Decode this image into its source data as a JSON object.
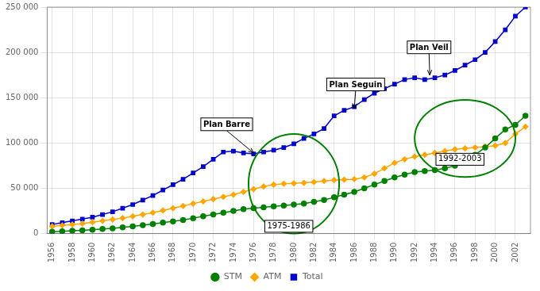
{
  "chart_data": {
    "type": "line",
    "x": [
      1956,
      1957,
      1958,
      1959,
      1960,
      1961,
      1962,
      1963,
      1964,
      1965,
      1966,
      1967,
      1968,
      1969,
      1970,
      1971,
      1972,
      1973,
      1974,
      1975,
      1976,
      1977,
      1978,
      1979,
      1980,
      1981,
      1982,
      1983,
      1984,
      1985,
      1986,
      1987,
      1988,
      1989,
      1990,
      1991,
      1992,
      1993,
      1994,
      1995,
      1996,
      1997,
      1998,
      1999,
      2000,
      2001,
      2002,
      2003
    ],
    "series": [
      {
        "name": "STM",
        "color": "#008000",
        "marker": "circle",
        "values": [
          2000,
          2500,
          3000,
          3500,
          4200,
          5000,
          5800,
          6800,
          7900,
          9200,
          10500,
          12000,
          13500,
          15000,
          17000,
          19000,
          21000,
          23000,
          25000,
          27000,
          28000,
          29000,
          30000,
          31000,
          32000,
          33000,
          35000,
          37000,
          40000,
          43000,
          46000,
          50000,
          54000,
          58000,
          62000,
          65000,
          68000,
          69000,
          70000,
          72000,
          75000,
          80000,
          87000,
          95000,
          105000,
          115000,
          120000,
          130000
        ]
      },
      {
        "name": "ATM",
        "color": "#FFA500",
        "marker": "diamond",
        "values": [
          8000,
          9000,
          10000,
          11000,
          12500,
          14000,
          15500,
          17000,
          19000,
          21000,
          23000,
          25500,
          28000,
          30500,
          33000,
          35500,
          38000,
          40500,
          43000,
          46000,
          49000,
          52000,
          54000,
          55000,
          55500,
          56000,
          57000,
          58000,
          59000,
          59500,
          60000,
          62000,
          66000,
          72000,
          78000,
          82000,
          85000,
          87000,
          89000,
          91000,
          93000,
          94000,
          95000,
          96000,
          97000,
          100000,
          110000,
          118000
        ]
      },
      {
        "name": "Total",
        "color": "#0000CD",
        "marker": "square",
        "values": [
          10000,
          12000,
          14000,
          16000,
          18000,
          21000,
          24000,
          28000,
          32000,
          37000,
          42000,
          48000,
          54000,
          60000,
          67000,
          74000,
          82000,
          90000,
          91000,
          89000,
          88000,
          90000,
          92000,
          95000,
          99000,
          105000,
          110000,
          116000,
          130000,
          136000,
          140000,
          148000,
          155000,
          160000,
          165000,
          170000,
          172000,
          170000,
          172000,
          175000,
          180000,
          186000,
          192000,
          200000,
          212000,
          225000,
          240000,
          250000
        ]
      }
    ],
    "xlim": [
      1955.5,
      2003.5
    ],
    "xticks": [
      1956,
      1958,
      1960,
      1962,
      1964,
      1966,
      1968,
      1970,
      1972,
      1974,
      1976,
      1978,
      1980,
      1982,
      1984,
      1986,
      1988,
      1990,
      1992,
      1994,
      1996,
      1998,
      2000,
      2002
    ],
    "ylim": [
      0,
      250000
    ],
    "yticks": [
      0,
      {
        "value": 50000,
        "label": "50 000"
      },
      {
        "value": 100000,
        "label": "100 000"
      },
      {
        "value": 150000,
        "label": "150 000"
      },
      {
        "value": 200000,
        "label": "200 000"
      },
      {
        "value": 250000,
        "label": "250 000"
      }
    ],
    "grid": true,
    "legend": "bottom",
    "annotations": [
      {
        "text": "Plan Barre",
        "x": 1976,
        "y": 89000,
        "text_x": 1971,
        "text_y": 118000
      },
      {
        "text": "Plan Seguin",
        "x": 1986,
        "y": 138000,
        "text_x": 1983.5,
        "text_y": 162000
      },
      {
        "text": "Plan Veil",
        "x": 1993.5,
        "y": 175000,
        "text_x": 1991.5,
        "text_y": 203000
      }
    ],
    "ellipses": [
      {
        "cx": 1980,
        "cy": 55000,
        "width": 9,
        "height": 110000,
        "color": "green",
        "label": "1975-1986",
        "label_x": 1979.5,
        "label_y": 8000
      },
      {
        "cx": 1997,
        "cy": 105000,
        "width": 10,
        "height": 85000,
        "color": "green",
        "label": "1992-2003",
        "label_x": 1996.5,
        "label_y": 82000
      }
    ]
  }
}
